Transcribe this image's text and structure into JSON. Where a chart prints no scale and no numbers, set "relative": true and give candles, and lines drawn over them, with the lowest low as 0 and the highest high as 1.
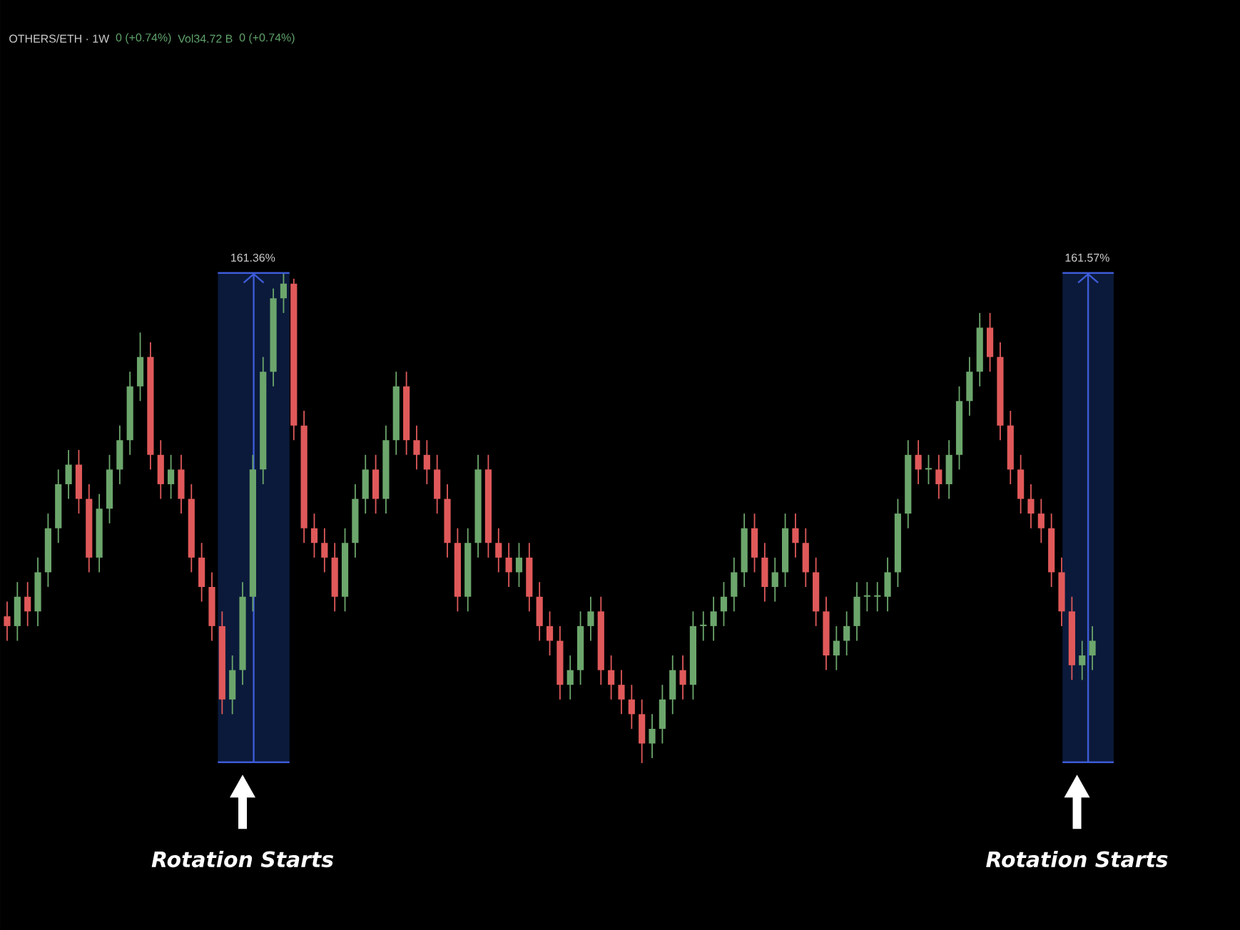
{
  "chart_data": {
    "type": "candlestick",
    "relative": true,
    "categories": [
      null,
      null,
      null,
      null,
      null,
      null,
      null,
      null,
      null,
      null,
      null,
      null,
      null,
      null,
      null,
      null,
      null,
      null,
      null,
      null,
      null,
      null,
      null,
      null,
      null,
      null,
      null,
      null,
      null,
      null,
      null,
      null,
      null,
      null,
      null,
      null,
      null,
      null,
      null,
      null,
      null,
      null,
      null,
      null,
      null,
      null,
      null,
      null,
      null,
      null,
      null,
      null,
      null,
      null,
      null,
      null,
      null,
      null,
      null,
      null,
      null,
      null,
      null,
      null,
      null,
      null,
      null,
      null,
      null,
      null,
      null,
      null,
      null,
      null,
      null,
      null,
      null,
      null,
      null,
      null,
      null,
      null,
      null,
      null,
      null,
      null,
      null,
      null,
      null,
      null,
      null,
      null,
      null,
      null,
      null,
      null,
      null,
      null,
      null,
      null,
      null,
      null,
      null,
      null,
      null,
      null,
      null
    ],
    "ohlc": [
      [
        0.3,
        0.33,
        0.25,
        0.28
      ],
      [
        0.28,
        0.37,
        0.25,
        0.34
      ],
      [
        0.34,
        0.37,
        0.28,
        0.31
      ],
      [
        0.31,
        0.42,
        0.28,
        0.39
      ],
      [
        0.39,
        0.51,
        0.36,
        0.48
      ],
      [
        0.48,
        0.6,
        0.45,
        0.57
      ],
      [
        0.57,
        0.64,
        0.54,
        0.61
      ],
      [
        0.61,
        0.64,
        0.51,
        0.54
      ],
      [
        0.54,
        0.57,
        0.39,
        0.42
      ],
      [
        0.42,
        0.55,
        0.39,
        0.52
      ],
      [
        0.52,
        0.63,
        0.49,
        0.6
      ],
      [
        0.6,
        0.69,
        0.57,
        0.66
      ],
      [
        0.66,
        0.8,
        0.63,
        0.77
      ],
      [
        0.77,
        0.88,
        0.74,
        0.83
      ],
      [
        0.83,
        0.86,
        0.6,
        0.63
      ],
      [
        0.63,
        0.66,
        0.54,
        0.57
      ],
      [
        0.57,
        0.63,
        0.54,
        0.6
      ],
      [
        0.6,
        0.63,
        0.51,
        0.54
      ],
      [
        0.54,
        0.57,
        0.39,
        0.42
      ],
      [
        0.42,
        0.45,
        0.33,
        0.36
      ],
      [
        0.36,
        0.39,
        0.25,
        0.28
      ],
      [
        0.28,
        0.31,
        0.1,
        0.13
      ],
      [
        0.13,
        0.22,
        0.1,
        0.19
      ],
      [
        0.19,
        0.37,
        0.16,
        0.34
      ],
      [
        0.34,
        0.63,
        0.31,
        0.6
      ],
      [
        0.6,
        0.83,
        0.57,
        0.8
      ],
      [
        0.8,
        0.97,
        0.77,
        0.95
      ],
      [
        0.95,
        1.0,
        0.92,
        0.98
      ],
      [
        0.98,
        0.99,
        0.66,
        0.69
      ],
      [
        0.69,
        0.72,
        0.45,
        0.48
      ],
      [
        0.48,
        0.51,
        0.42,
        0.45
      ],
      [
        0.45,
        0.48,
        0.39,
        0.42
      ],
      [
        0.42,
        0.45,
        0.31,
        0.34
      ],
      [
        0.34,
        0.48,
        0.31,
        0.45
      ],
      [
        0.45,
        0.57,
        0.42,
        0.54
      ],
      [
        0.54,
        0.63,
        0.51,
        0.6
      ],
      [
        0.6,
        0.63,
        0.51,
        0.54
      ],
      [
        0.54,
        0.69,
        0.51,
        0.66
      ],
      [
        0.66,
        0.8,
        0.63,
        0.77
      ],
      [
        0.77,
        0.8,
        0.63,
        0.66
      ],
      [
        0.66,
        0.69,
        0.6,
        0.63
      ],
      [
        0.63,
        0.66,
        0.57,
        0.6
      ],
      [
        0.6,
        0.63,
        0.51,
        0.54
      ],
      [
        0.54,
        0.57,
        0.42,
        0.45
      ],
      [
        0.45,
        0.48,
        0.31,
        0.34
      ],
      [
        0.34,
        0.48,
        0.31,
        0.45
      ],
      [
        0.45,
        0.63,
        0.42,
        0.6
      ],
      [
        0.6,
        0.63,
        0.42,
        0.45
      ],
      [
        0.45,
        0.48,
        0.39,
        0.42
      ],
      [
        0.42,
        0.45,
        0.36,
        0.39
      ],
      [
        0.39,
        0.45,
        0.36,
        0.42
      ],
      [
        0.42,
        0.45,
        0.31,
        0.34
      ],
      [
        0.34,
        0.37,
        0.25,
        0.28
      ],
      [
        0.28,
        0.31,
        0.22,
        0.25
      ],
      [
        0.25,
        0.28,
        0.13,
        0.16
      ],
      [
        0.16,
        0.22,
        0.13,
        0.19
      ],
      [
        0.19,
        0.31,
        0.16,
        0.28
      ],
      [
        0.28,
        0.34,
        0.25,
        0.31
      ],
      [
        0.31,
        0.34,
        0.16,
        0.19
      ],
      [
        0.19,
        0.22,
        0.13,
        0.16
      ],
      [
        0.16,
        0.19,
        0.1,
        0.13
      ],
      [
        0.13,
        0.16,
        0.07,
        0.1
      ],
      [
        0.1,
        0.13,
        0.0,
        0.04
      ],
      [
        0.04,
        0.1,
        0.01,
        0.07
      ],
      [
        0.07,
        0.16,
        0.04,
        0.13
      ],
      [
        0.13,
        0.22,
        0.1,
        0.19
      ],
      [
        0.19,
        0.22,
        0.13,
        0.16
      ],
      [
        0.16,
        0.31,
        0.13,
        0.28
      ],
      [
        0.28,
        0.31,
        0.25,
        0.28
      ],
      [
        0.28,
        0.34,
        0.25,
        0.31
      ],
      [
        0.31,
        0.37,
        0.28,
        0.34
      ],
      [
        0.34,
        0.42,
        0.31,
        0.39
      ],
      [
        0.39,
        0.51,
        0.36,
        0.48
      ],
      [
        0.48,
        0.51,
        0.39,
        0.42
      ],
      [
        0.42,
        0.45,
        0.33,
        0.36
      ],
      [
        0.36,
        0.42,
        0.33,
        0.39
      ],
      [
        0.39,
        0.51,
        0.36,
        0.48
      ],
      [
        0.48,
        0.51,
        0.42,
        0.45
      ],
      [
        0.45,
        0.48,
        0.36,
        0.39
      ],
      [
        0.39,
        0.42,
        0.28,
        0.31
      ],
      [
        0.31,
        0.34,
        0.19,
        0.22
      ],
      [
        0.22,
        0.28,
        0.19,
        0.25
      ],
      [
        0.25,
        0.31,
        0.22,
        0.28
      ],
      [
        0.28,
        0.37,
        0.25,
        0.34
      ],
      [
        0.34,
        0.37,
        0.31,
        0.34
      ],
      [
        0.34,
        0.37,
        0.31,
        0.34
      ],
      [
        0.34,
        0.42,
        0.31,
        0.39
      ],
      [
        0.39,
        0.54,
        0.36,
        0.51
      ],
      [
        0.51,
        0.66,
        0.48,
        0.63
      ],
      [
        0.63,
        0.66,
        0.57,
        0.6
      ],
      [
        0.6,
        0.63,
        0.57,
        0.6
      ],
      [
        0.6,
        0.63,
        0.54,
        0.57
      ],
      [
        0.57,
        0.66,
        0.54,
        0.63
      ],
      [
        0.63,
        0.77,
        0.6,
        0.74
      ],
      [
        0.74,
        0.83,
        0.71,
        0.8
      ],
      [
        0.8,
        0.92,
        0.77,
        0.89
      ],
      [
        0.89,
        0.92,
        0.8,
        0.83
      ],
      [
        0.83,
        0.86,
        0.66,
        0.69
      ],
      [
        0.69,
        0.72,
        0.57,
        0.6
      ],
      [
        0.6,
        0.63,
        0.51,
        0.54
      ],
      [
        0.54,
        0.57,
        0.48,
        0.51
      ],
      [
        0.51,
        0.54,
        0.45,
        0.48
      ],
      [
        0.48,
        0.51,
        0.36,
        0.39
      ],
      [
        0.39,
        0.42,
        0.28,
        0.31
      ],
      [
        0.31,
        0.34,
        0.17,
        0.2
      ],
      [
        0.2,
        0.25,
        0.17,
        0.22
      ],
      [
        0.22,
        0.28,
        0.19,
        0.25
      ]
    ],
    "annotations": [
      "OTHERS/ETH · 1W",
      "0 (+0.74%)",
      "Vol34.72 B",
      "0 (+0.74%)",
      "161.36%",
      "161.57%",
      "Rotation Starts",
      "Rotation Starts"
    ]
  }
}
